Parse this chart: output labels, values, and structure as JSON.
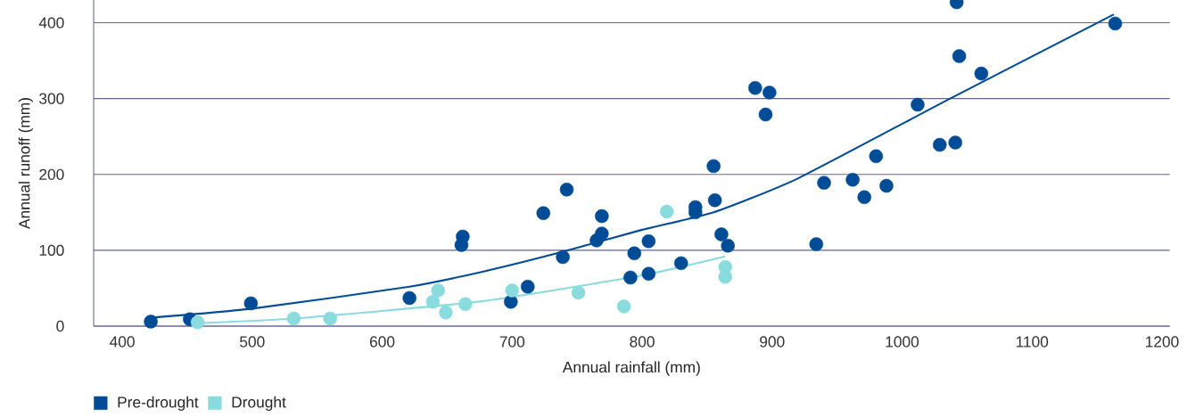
{
  "chart_data": {
    "type": "scatter",
    "xlabel": "Annual rainfall (mm)",
    "ylabel": "Annual runoff (mm)",
    "xlim": [
      378,
      1206
    ],
    "ylim": [
      0,
      430
    ],
    "xticks": [
      400,
      500,
      600,
      700,
      800,
      900,
      1000,
      1100,
      1200
    ],
    "yticks": [
      0,
      100,
      200,
      300,
      400
    ],
    "grid": "y",
    "legend": "bottom left",
    "marker": "circle",
    "series": [
      {
        "name": "Pre-drought",
        "color": "#004c97",
        "x": [
          422,
          452,
          499,
          621,
          662,
          661,
          699,
          712,
          724,
          742,
          739,
          769,
          769,
          765,
          794,
          791,
          805,
          805,
          830,
          841,
          841,
          855,
          856,
          861,
          866,
          887,
          898,
          895,
          934,
          940,
          962,
          971,
          980,
          988,
          1012,
          1029,
          1041,
          1044,
          1042,
          1061,
          1164
        ],
        "values": [
          6,
          9,
          30,
          37,
          118,
          107,
          32,
          52,
          149,
          180,
          91,
          145,
          122,
          113,
          96,
          64,
          112,
          69,
          83,
          157,
          150,
          211,
          166,
          121,
          106,
          314,
          308,
          279,
          108,
          189,
          193,
          170,
          224,
          185,
          292,
          239,
          242,
          356,
          427,
          333,
          399
        ]
      },
      {
        "name": "Drought",
        "color": "#8adbde",
        "x": [
          458,
          532,
          560,
          639,
          643,
          649,
          664,
          700,
          751,
          786,
          819,
          864,
          864
        ],
        "values": [
          5,
          10,
          10,
          32,
          47,
          18,
          29,
          47,
          44,
          26,
          151,
          78,
          65
        ]
      },
      {
        "color": "#004c97",
        "type": "line",
        "marker": "none",
        "x": [
          422,
          500,
          621,
          678,
          739,
          800,
          855,
          919,
          1037,
          1163
        ],
        "values": [
          11,
          23,
          52,
          72,
          98,
          127,
          150,
          194,
          300,
          411
        ]
      },
      {
        "color": "#8adbde",
        "type": "line",
        "marker": "none",
        "x": [
          458,
          532,
          678,
          800,
          864
        ],
        "values": [
          4,
          10,
          33,
          67,
          92
        ]
      }
    ]
  }
}
